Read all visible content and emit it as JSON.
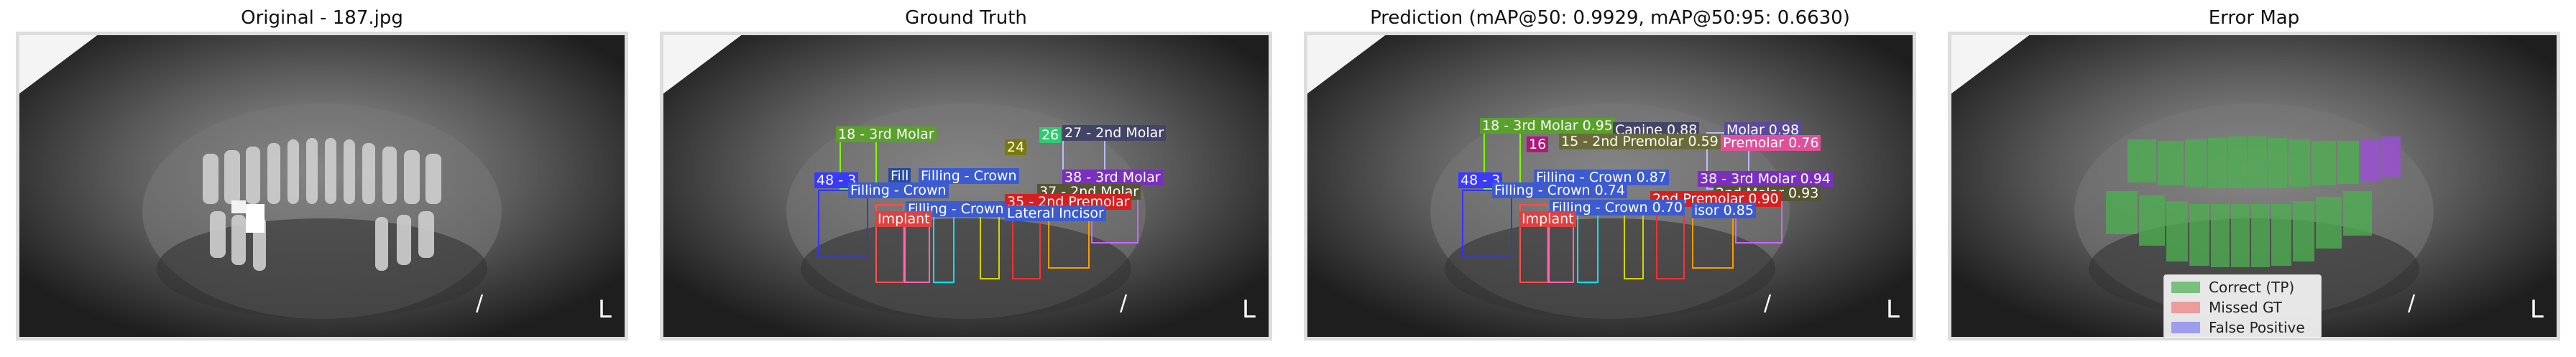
{
  "panels": [
    {
      "title": "Original - 187.jpg"
    },
    {
      "title": "Ground Truth"
    },
    {
      "title": "Prediction (mAP@50: 0.9929, mAP@50:95: 0.6630)"
    },
    {
      "title": "Error Map"
    }
  ],
  "gt_labels": {
    "l1": "18 - 3rd Molar",
    "l2": "27 - 2nd Molar",
    "l3": "48 - 3",
    "l4": "Fill",
    "l5": "Filling - Crown",
    "l6": "38 - 3rd Molar",
    "l7": "Filling - Crown",
    "l8": "37 - 2nd Molar",
    "l9": "Implant",
    "l10": "35 - 2nd Premolar",
    "l11": "Lateral Incisor",
    "l12": "24",
    "l13": "26",
    "l14": "Filling - Crown"
  },
  "pred_labels": {
    "p1": "18 - 3rd Molar 0.95",
    "p2": "15 - 2nd Premolar 0.59",
    "p3": "Premolar 0.76",
    "p4": "Filling - Crown 0.87",
    "p5": "38 - 3rd Molar 0.94",
    "p6": "48 - 3",
    "p7": "Filling - Crown 0.74",
    "p8": "2nd Molar 0.93",
    "p9": "Filling - Crown 0.70",
    "p10": "Implant",
    "p11": "2nd Premolar 0.90",
    "p12": "isor 0.85",
    "p13": "16",
    "p14": "Molar 0.98",
    "p15": "Canine 0.88"
  },
  "legend": {
    "tp": "Correct (TP)",
    "fn": "Missed GT",
    "fp": "False Positive"
  },
  "colors": {
    "tp": "#4caf50",
    "fn": "#ef8a8a",
    "fp": "#8b8bf0",
    "fp_box": "#9b4fd6"
  }
}
